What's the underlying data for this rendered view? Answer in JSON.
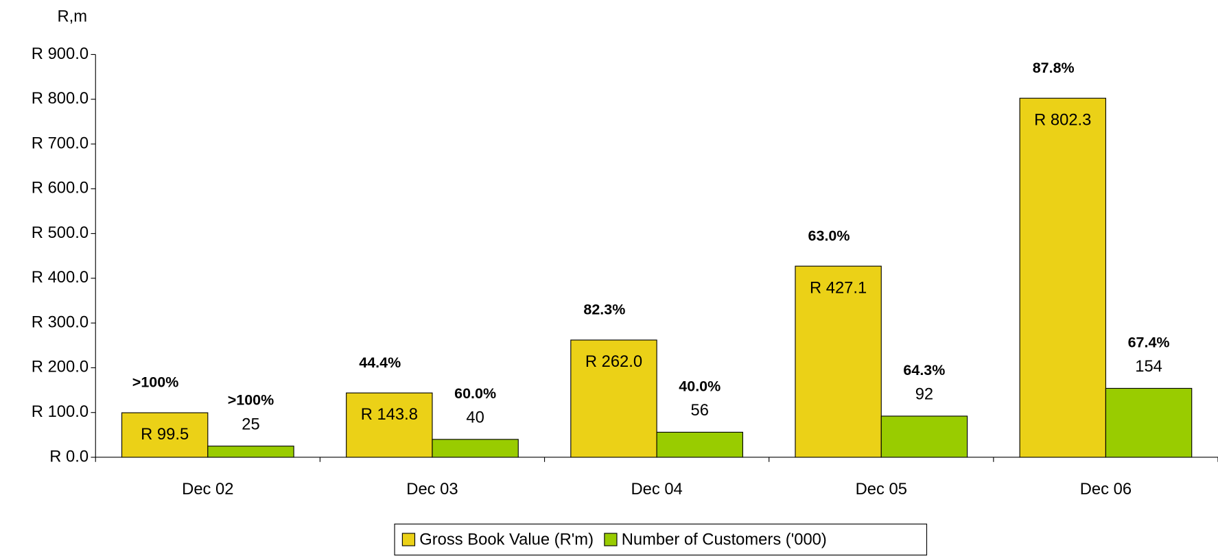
{
  "chart_data": {
    "type": "bar",
    "y_axis_label": "R,m",
    "categories": [
      "Dec 02",
      "Dec 03",
      "Dec 04",
      "Dec 05",
      "Dec 06"
    ],
    "series": [
      {
        "name": "Gross Book Value (R'm)",
        "color": "#ebd117",
        "values": [
          99.5,
          143.8,
          262.0,
          427.1,
          802.3
        ],
        "value_labels": [
          "R 99.5",
          "R 143.8",
          "R 262.0",
          "R 427.1",
          "R 802.3"
        ],
        "growth_labels": [
          ">100%",
          "44.4%",
          "82.3%",
          "63.0%",
          "87.8%"
        ]
      },
      {
        "name": "Number of Customers ('000)",
        "color": "#99cc00",
        "values": [
          25,
          40,
          56,
          92,
          154
        ],
        "growth_labels": [
          ">100%",
          "60.0%",
          "40.0%",
          "64.3%",
          "67.4%"
        ]
      }
    ],
    "ylim": [
      0,
      900
    ],
    "yticks": [
      {
        "value": 0,
        "label": "R 0.0"
      },
      {
        "value": 100,
        "label": "R 100.0"
      },
      {
        "value": 200,
        "label": "R 200.0"
      },
      {
        "value": 300,
        "label": "R 300.0"
      },
      {
        "value": 400,
        "label": "R 400.0"
      },
      {
        "value": 500,
        "label": "R 500.0"
      },
      {
        "value": 600,
        "label": "R 600.0"
      },
      {
        "value": 700,
        "label": "R 700.0"
      },
      {
        "value": 800,
        "label": "R 800.0"
      },
      {
        "value": 900,
        "label": "R 900.0"
      }
    ],
    "legend": "bottom"
  }
}
